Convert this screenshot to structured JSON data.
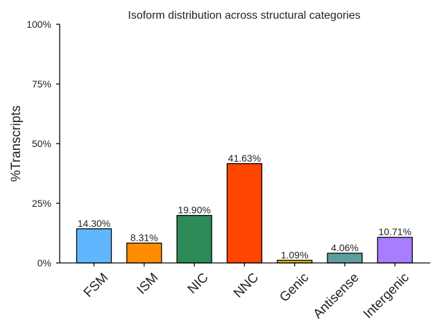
{
  "chart_data": {
    "type": "bar",
    "title": "Isoform distribution across structural categories",
    "xlabel": "",
    "ylabel": "%Transcripts",
    "categories": [
      "FSM",
      "ISM",
      "NIC",
      "NNC",
      "Genic",
      "Antisense",
      "Intergenic"
    ],
    "values": [
      14.3,
      8.31,
      19.9,
      41.63,
      1.09,
      4.06,
      10.71
    ],
    "value_labels": [
      "14.30%",
      "8.31%",
      "19.90%",
      "41.63%",
      "1.09%",
      "4.06%",
      "10.71%"
    ],
    "colors": [
      "#61b7ff",
      "#ff8c00",
      "#2e8b57",
      "#ff4500",
      "#dab600",
      "#5f9ea0",
      "#a87dff"
    ],
    "ylim": [
      0,
      100
    ],
    "yticks": [
      0,
      25,
      50,
      75,
      100
    ],
    "ytick_labels": [
      "0%",
      "25%",
      "50%",
      "75%",
      "100%"
    ],
    "grid": false,
    "legend": "none"
  }
}
